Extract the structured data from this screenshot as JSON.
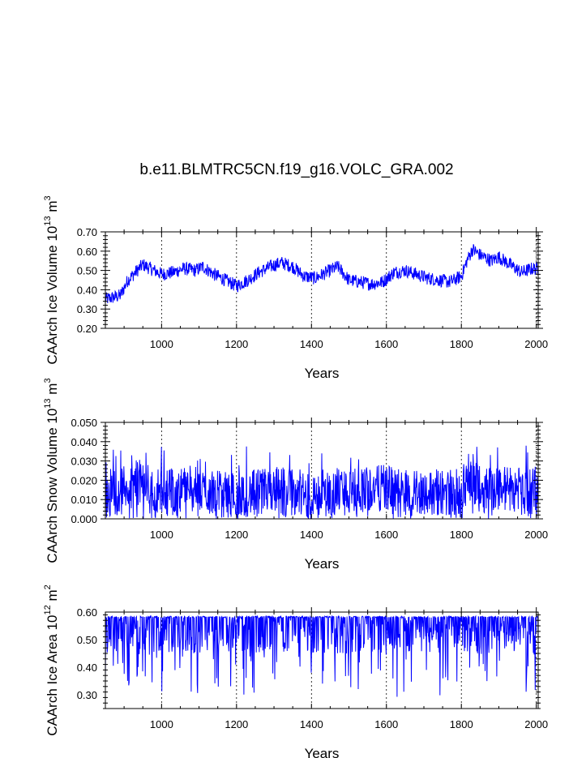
{
  "title": "b.e11.BLMTRC5CN.f19_g16.VOLC_GRA.002",
  "line_color": "#0000ff",
  "chart_data": [
    {
      "type": "line",
      "ylabel": "CAArch Ice Volume 10¹³ m³",
      "ylabel_parts": {
        "main": "CAArch Ice Volume 10",
        "exp": "13",
        "unit": " m",
        "unit_exp": "3"
      },
      "xlabel": "Years",
      "xlim": [
        850,
        2005
      ],
      "ylim": [
        0.2,
        0.7
      ],
      "xticks": [
        1000,
        1200,
        1400,
        1600,
        1800,
        2000
      ],
      "yticks": [
        "0.20",
        "0.30",
        "0.40",
        "0.50",
        "0.60",
        "0.70"
      ],
      "grid": "dashed vertical at x ticks",
      "series": [
        {
          "x": [
            850,
            870,
            890,
            910,
            930,
            950,
            970,
            1000,
            1030,
            1060,
            1090,
            1110,
            1140,
            1170,
            1200,
            1230,
            1260,
            1290,
            1320,
            1350,
            1380,
            1410,
            1440,
            1470,
            1500,
            1530,
            1560,
            1590,
            1620,
            1650,
            1680,
            1710,
            1740,
            1770,
            1800,
            1815,
            1830,
            1850,
            1880,
            1900,
            1930,
            1960,
            1990,
            2005
          ],
          "mean": [
            0.35,
            0.36,
            0.37,
            0.45,
            0.49,
            0.53,
            0.51,
            0.48,
            0.49,
            0.51,
            0.5,
            0.52,
            0.48,
            0.45,
            0.42,
            0.45,
            0.49,
            0.52,
            0.54,
            0.52,
            0.47,
            0.46,
            0.49,
            0.52,
            0.45,
            0.44,
            0.43,
            0.44,
            0.49,
            0.5,
            0.48,
            0.46,
            0.45,
            0.44,
            0.47,
            0.55,
            0.61,
            0.58,
            0.55,
            0.57,
            0.53,
            0.49,
            0.51,
            0.51
          ],
          "spread": 0.035
        }
      ]
    },
    {
      "type": "line",
      "ylabel": "CAArch Snow Volume 10¹³ m³",
      "ylabel_parts": {
        "main": "CAArch Snow Volume 10",
        "exp": "13",
        "unit": " m",
        "unit_exp": "3"
      },
      "xlabel": "Years",
      "xlim": [
        850,
        2005
      ],
      "ylim": [
        0.0,
        0.05
      ],
      "xticks": [
        1000,
        1200,
        1400,
        1600,
        1800,
        2000
      ],
      "yticks": [
        "0.000",
        "0.010",
        "0.020",
        "0.030",
        "0.040",
        "0.050"
      ],
      "grid": "dashed vertical at x ticks",
      "series": [
        {
          "x": [
            850,
            900,
            940,
            1000,
            1070,
            1150,
            1200,
            1320,
            1400,
            1480,
            1600,
            1700,
            1800,
            1820,
            1850,
            1900,
            2005
          ],
          "mean": [
            0.014,
            0.016,
            0.019,
            0.014,
            0.016,
            0.013,
            0.012,
            0.016,
            0.012,
            0.015,
            0.016,
            0.014,
            0.014,
            0.022,
            0.015,
            0.016,
            0.015
          ],
          "spread": 0.012,
          "peak": 0.045
        }
      ]
    },
    {
      "type": "line",
      "ylabel": "CAArch Ice Area 10¹² m²",
      "ylabel_parts": {
        "main": "CAArch Ice Area 10",
        "exp": "12",
        "unit": " m",
        "unit_exp": "2"
      },
      "xlabel": "Years",
      "xlim": [
        850,
        2005
      ],
      "ylim": [
        0.25,
        0.6
      ],
      "xticks": [
        1000,
        1200,
        1400,
        1600,
        1800,
        2000
      ],
      "yticks": [
        "0.30",
        "0.40",
        "0.50",
        "0.60"
      ],
      "grid": "dashed vertical at x ticks",
      "series": [
        {
          "x": [
            850,
            2005
          ],
          "max": 0.585,
          "typical_min": 0.45,
          "min": 0.29
        }
      ]
    }
  ]
}
